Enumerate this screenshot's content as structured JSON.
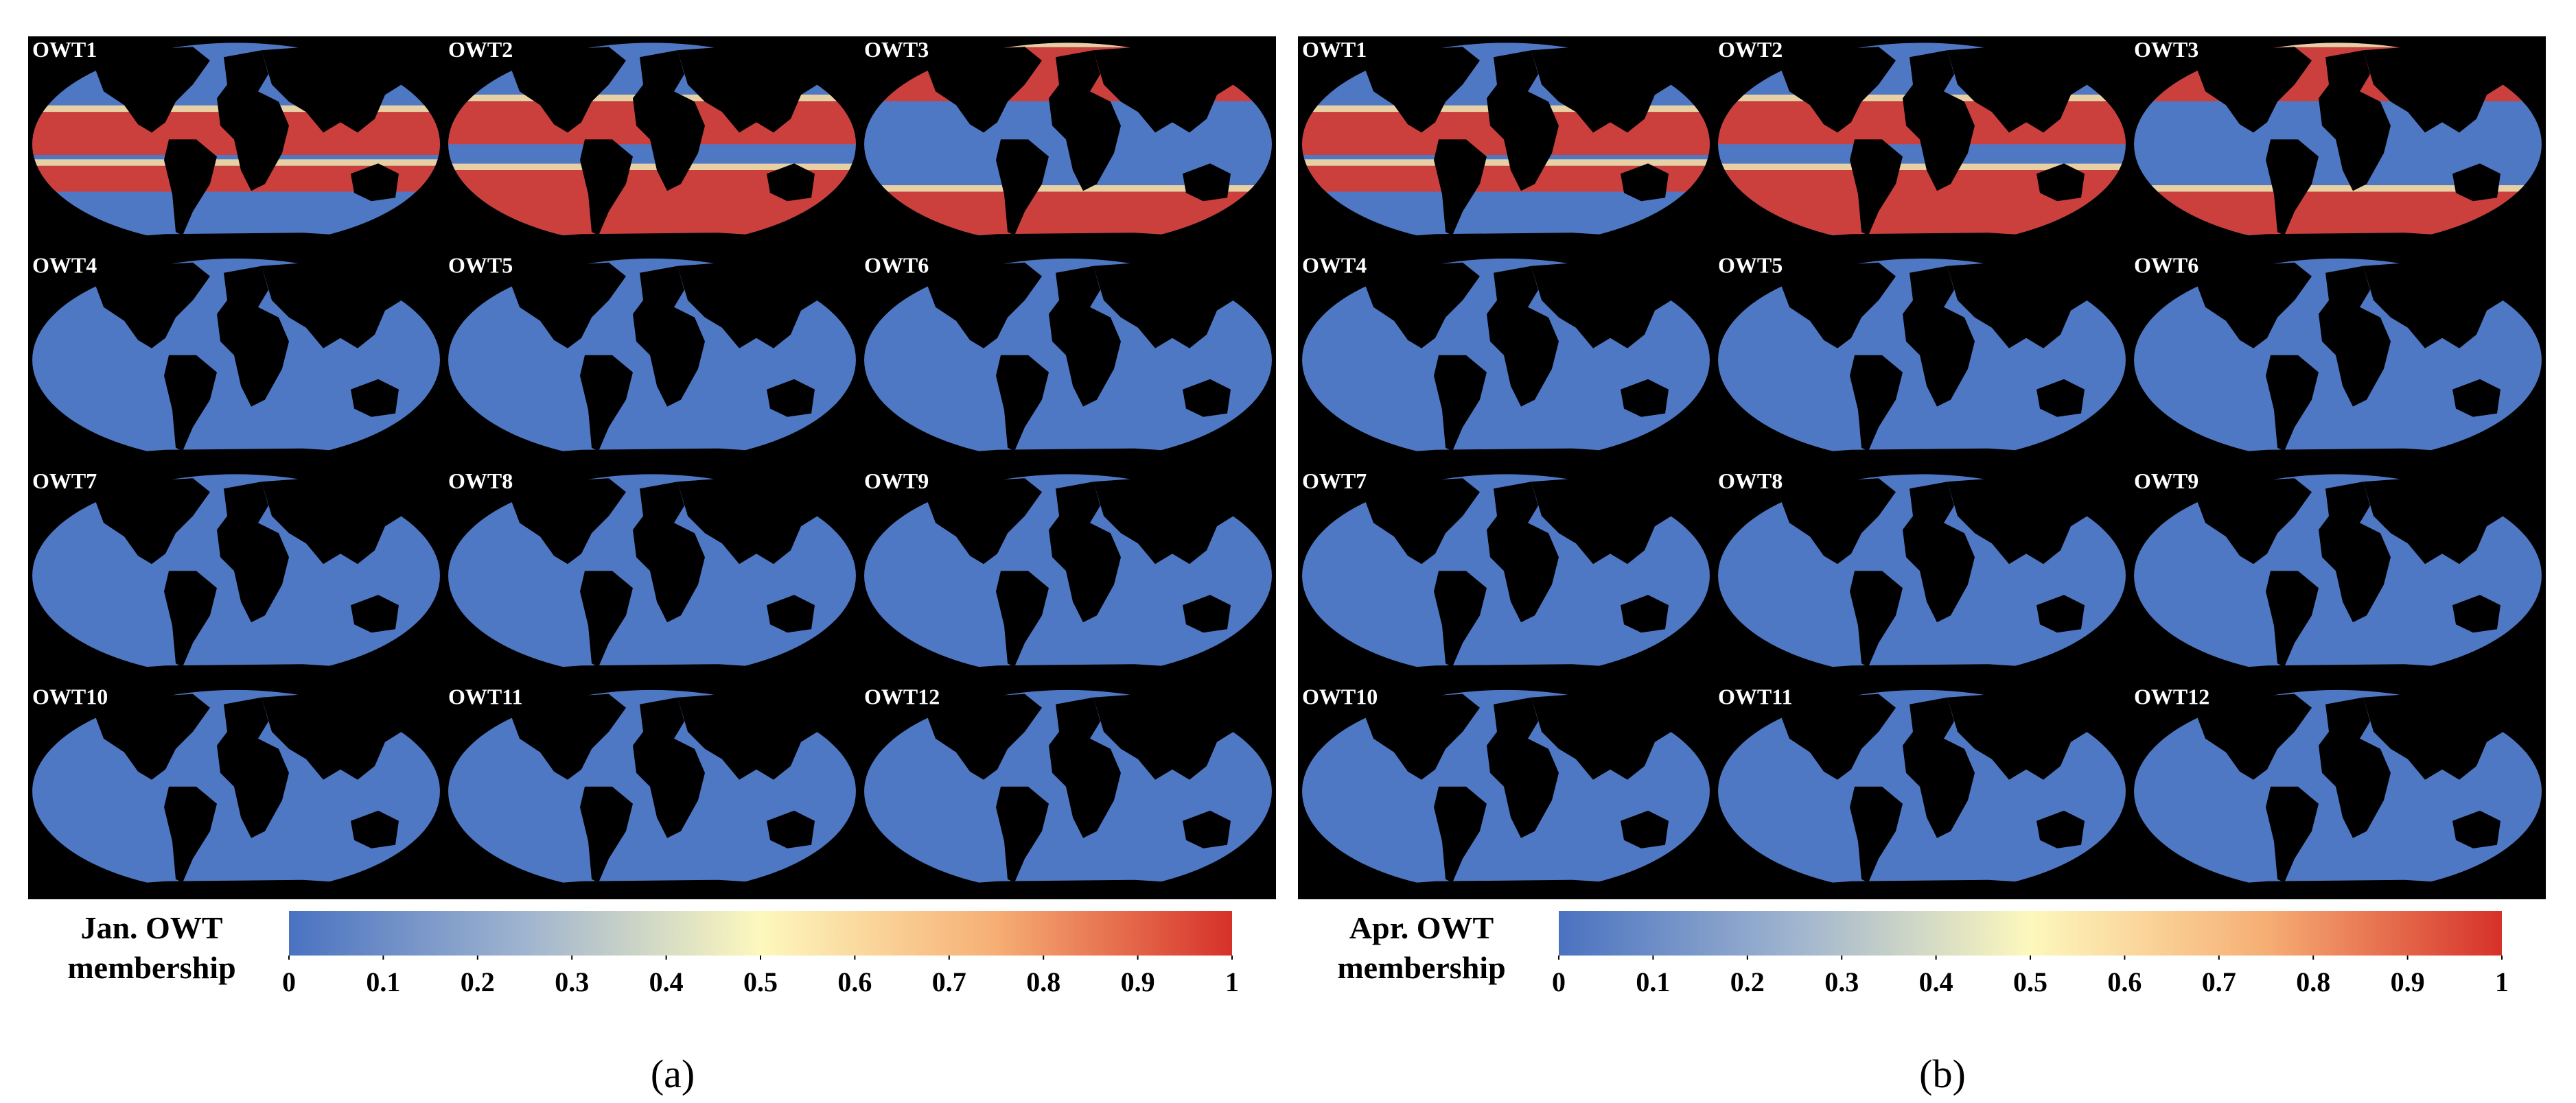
{
  "panels": [
    {
      "label": "(a)",
      "tiles": [
        "OWT1",
        "OWT2",
        "OWT3",
        "OWT4",
        "OWT5",
        "OWT6",
        "OWT7",
        "OWT8",
        "OWT9",
        "OWT10",
        "OWT11",
        "OWT12"
      ],
      "colorbar": {
        "title": [
          "Jan. OWT",
          "membership"
        ],
        "lim": [
          0,
          1
        ],
        "ticks": [
          0,
          0.1,
          0.2,
          0.3,
          0.4,
          0.5,
          0.6,
          0.7,
          0.8,
          0.9,
          1
        ],
        "colors": [
          "#4a72c1",
          "#9fb4cf",
          "#fdf8bd",
          "#f6ae74",
          "#d63129"
        ]
      }
    },
    {
      "label": "(b)",
      "tiles": [
        "OWT1",
        "OWT2",
        "OWT3",
        "OWT4",
        "OWT5",
        "OWT6",
        "OWT7",
        "OWT8",
        "OWT9",
        "OWT10",
        "OWT11",
        "OWT12"
      ],
      "colorbar": {
        "title": [
          "Apr. OWT",
          "membership"
        ],
        "lim": [
          0,
          1
        ],
        "ticks": [
          0,
          0.1,
          0.2,
          0.3,
          0.4,
          0.5,
          0.6,
          0.7,
          0.8,
          0.9,
          1
        ],
        "colors": [
          "#4a72c1",
          "#9fb4cf",
          "#fdf8bd",
          "#f6ae74",
          "#d63129"
        ]
      }
    }
  ]
}
